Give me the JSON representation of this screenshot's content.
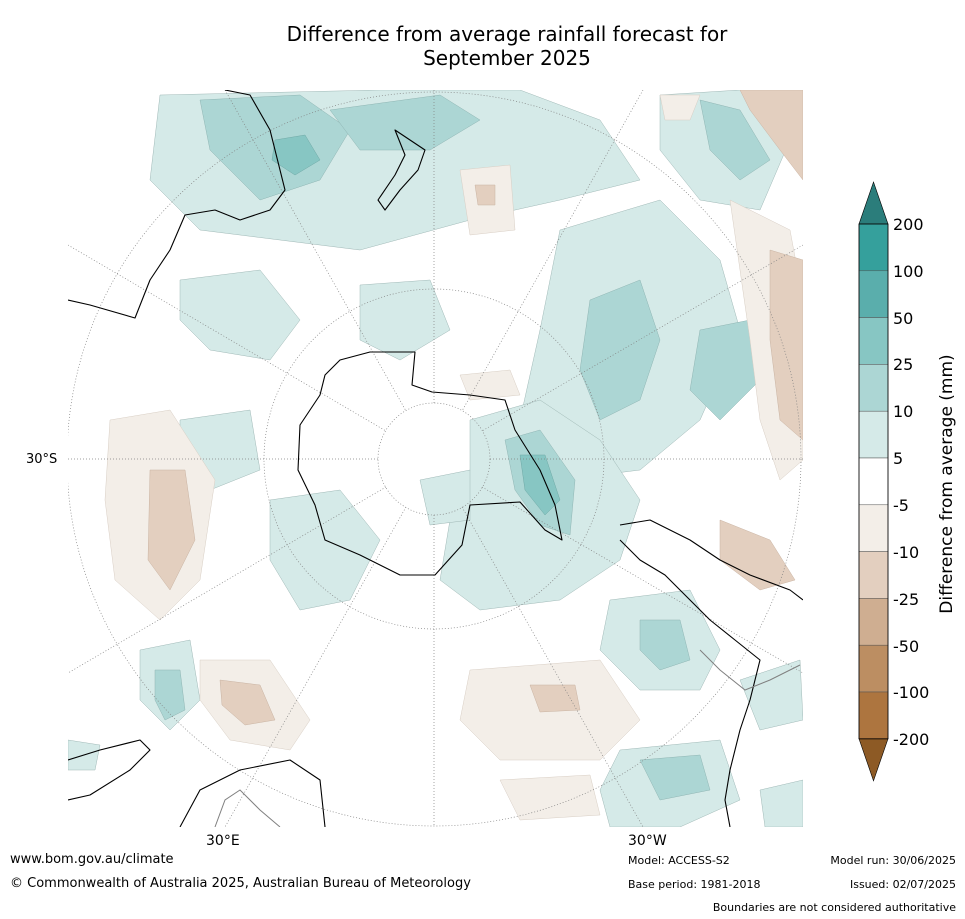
{
  "title_line1": "Difference from average rainfall forecast for",
  "title_line2": "September 2025",
  "map": {
    "projection": "south-polar-stereographic",
    "lat_label": "30°S",
    "lon_labels": [
      "30°E",
      "30°W"
    ],
    "colors": {
      "map_background": "#ffffff",
      "coastline": "#000000",
      "borders": "#808080",
      "gridlines": "#808080"
    }
  },
  "colorbar": {
    "title": "Difference from average (mm)",
    "tick_labels": [
      "200",
      "100",
      "50",
      "25",
      "10",
      "5",
      "-5",
      "-10",
      "-25",
      "-50",
      "-100",
      "-200"
    ],
    "bins": [
      {
        "range": "> 200",
        "color": "#2b7d7b"
      },
      {
        "range": "100 to 200",
        "color": "#35a09c"
      },
      {
        "range": "50 to 100",
        "color": "#5aaeac"
      },
      {
        "range": "25 to 50",
        "color": "#87c6c3"
      },
      {
        "range": "10 to 25",
        "color": "#acd6d4"
      },
      {
        "range": "5 to 10",
        "color": "#d5eae8"
      },
      {
        "range": "-5 to 5",
        "color": "#ffffff"
      },
      {
        "range": "-10 to -5",
        "color": "#f3eee8"
      },
      {
        "range": "-25 to -10",
        "color": "#e3cfbf"
      },
      {
        "range": "-50 to -25",
        "color": "#cfae91"
      },
      {
        "range": "-100 to -50",
        "color": "#bc8e62"
      },
      {
        "range": "-200 to -100",
        "color": "#ad753f"
      },
      {
        "range": "< -200",
        "color": "#8d5a25"
      }
    ]
  },
  "footer": {
    "website": "www.bom.gov.au/climate",
    "copyright": "© Commonwealth of Australia 2025, Australian Bureau of Meteorology",
    "model": "Model: ACCESS-S2",
    "base_period": "Base period: 1981-2018",
    "model_run": "Model run: 30/06/2025",
    "issued": "Issued: 02/07/2025",
    "disclaimer": "Boundaries are not considered authoritative"
  }
}
